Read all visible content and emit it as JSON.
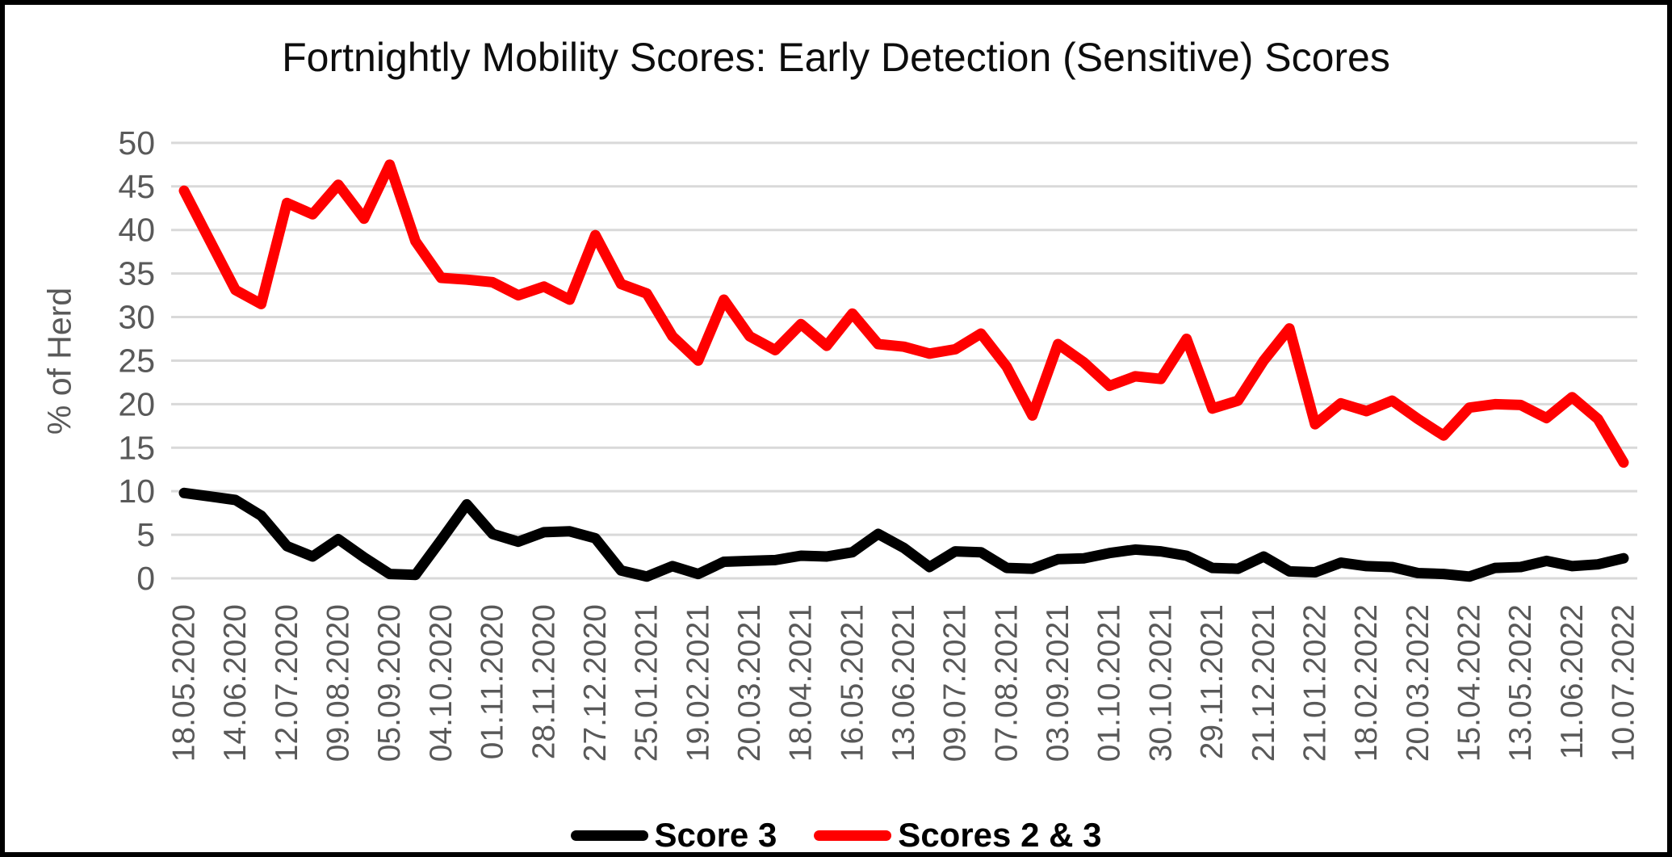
{
  "window": {
    "background": "#ffffff",
    "frame_border_color": "#000000"
  },
  "chart_data": {
    "type": "line",
    "title": "Fortnightly Mobility Scores: Early Detection (Sensitive) Scores",
    "xlabel": "",
    "ylabel": "% of Herd",
    "ylim": [
      0,
      50
    ],
    "ytick_labels": [
      0,
      5,
      10,
      15,
      20,
      25,
      30,
      35,
      40,
      45,
      50
    ],
    "grid": "horizontal",
    "gridline_color": "#d9d9d9",
    "axis_text_color": "#595959",
    "legend_position": "bottom",
    "n_points": 57,
    "x_label_every": 2,
    "x_labels": [
      "18.05.2020",
      "14.06.2020",
      "12.07.2020",
      "09.08.2020",
      "05.09.2020",
      "04.10.2020",
      "01.11.2020",
      "28.11.2020",
      "27.12.2020",
      "25.01.2021",
      "19.02.2021",
      "20.03.2021",
      "18.04.2021",
      "16.05.2021",
      "13.06.2021",
      "09.07.2021",
      "07.08.2021",
      "03.09.2021",
      "01.10.2021",
      "30.10.2021",
      "29.11.2021",
      "21.12.2021",
      "21.01.2022",
      "18.02.2022",
      "20.03.2022",
      "15.04.2022",
      "13.05.2022",
      "11.06.2022",
      "10.07.2022"
    ],
    "series": [
      {
        "name": "Score 3",
        "color": "#000000",
        "values": [
          9.8,
          9.4,
          9.0,
          7.2,
          3.7,
          2.5,
          4.5,
          2.4,
          0.5,
          0.4,
          4.4,
          8.5,
          5.1,
          4.2,
          5.3,
          5.4,
          4.6,
          0.9,
          0.2,
          1.4,
          0.5,
          1.9,
          2.0,
          2.1,
          2.6,
          2.5,
          3.0,
          5.1,
          3.5,
          1.3,
          3.1,
          3.0,
          1.2,
          1.1,
          2.2,
          2.3,
          2.9,
          3.3,
          3.1,
          2.6,
          1.2,
          1.1,
          2.5,
          0.8,
          0.7,
          1.8,
          1.4,
          1.3,
          0.6,
          0.5,
          0.2,
          1.2,
          1.3,
          2.0,
          1.4,
          1.6,
          2.3
        ]
      },
      {
        "name": "Scores 2 & 3",
        "color": "#ff0000",
        "values": [
          44.5,
          38.8,
          33.1,
          31.5,
          43.1,
          41.8,
          45.2,
          41.3,
          47.5,
          38.7,
          34.5,
          34.3,
          34.0,
          32.5,
          33.5,
          32.0,
          39.4,
          33.8,
          32.7,
          27.8,
          25.0,
          32.0,
          27.8,
          26.2,
          29.2,
          26.7,
          30.4,
          26.9,
          26.6,
          25.8,
          26.3,
          28.1,
          24.3,
          18.7,
          26.9,
          24.8,
          22.1,
          23.2,
          22.9,
          27.5,
          19.5,
          20.4,
          25.0,
          28.7,
          17.7,
          20.1,
          19.2,
          20.4,
          18.3,
          16.4,
          19.6,
          20.0,
          19.9,
          18.4,
          20.8,
          18.3,
          13.3
        ]
      }
    ]
  }
}
